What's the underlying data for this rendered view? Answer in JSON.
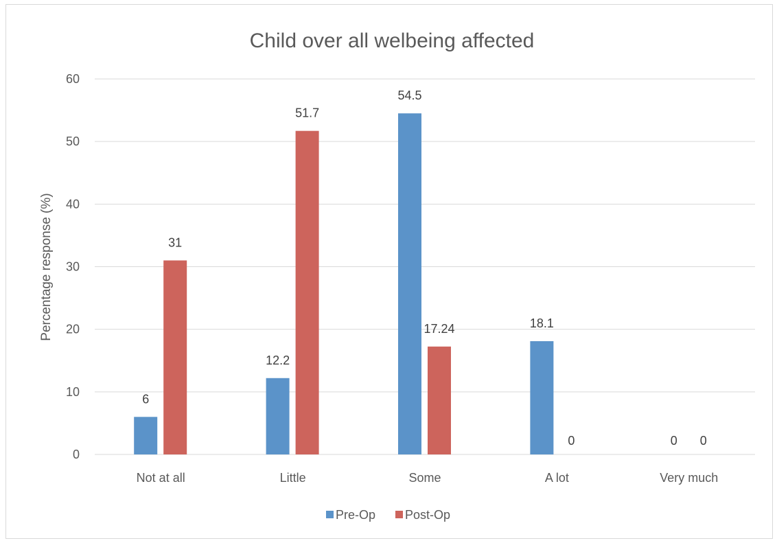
{
  "chart_data": {
    "type": "bar",
    "title": "Child over all welbeing affected",
    "xlabel": "",
    "ylabel": "Percentage response (%)",
    "categories": [
      "Not at all",
      "Little",
      "Some",
      "A lot",
      "Very much"
    ],
    "series": [
      {
        "name": "Pre-Op",
        "color": "#5b93c9",
        "values": [
          6,
          12.2,
          54.5,
          18.1,
          0
        ]
      },
      {
        "name": "Post-Op",
        "color": "#cd645c",
        "values": [
          31,
          51.7,
          17.24,
          0,
          0
        ]
      }
    ],
    "ylim": [
      0,
      60
    ],
    "yticks": [
      0,
      10,
      20,
      30,
      40,
      50,
      60
    ],
    "grid": true,
    "legend_position": "bottom"
  }
}
